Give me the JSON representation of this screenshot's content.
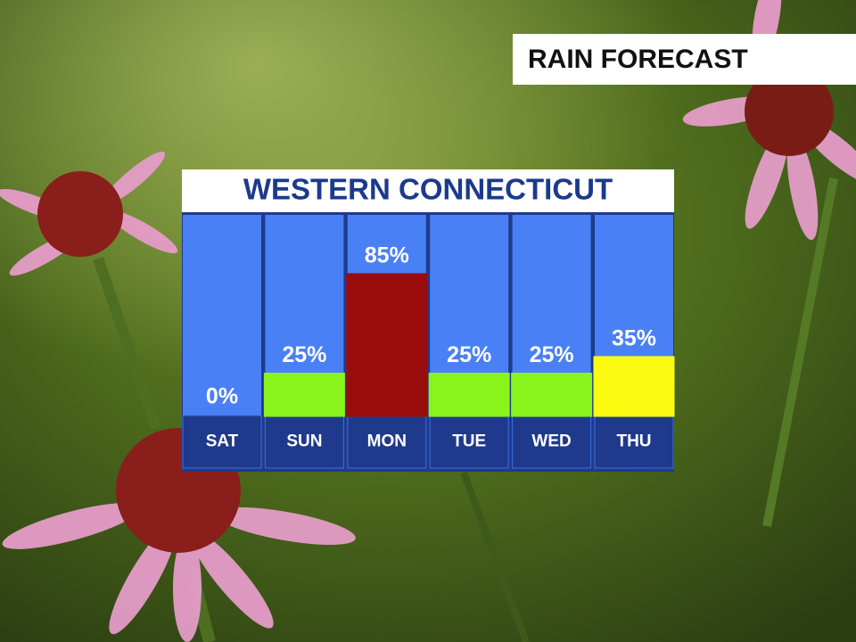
{
  "chart_data": {
    "type": "bar",
    "subtitle": "RAIN FORECAST",
    "title": "WESTERN CONNECTICUT",
    "categories": [
      "SAT",
      "SUN",
      "MON",
      "TUE",
      "WED",
      "THU"
    ],
    "values": [
      0,
      25,
      85,
      25,
      25,
      35
    ],
    "value_labels": [
      "0%",
      "25%",
      "85%",
      "25%",
      "25%",
      "35%"
    ],
    "colors": [
      "#ffffff",
      "#88f41c",
      "#9a0c0c",
      "#88f41c",
      "#88f41c",
      "#fbfb12"
    ]
  }
}
